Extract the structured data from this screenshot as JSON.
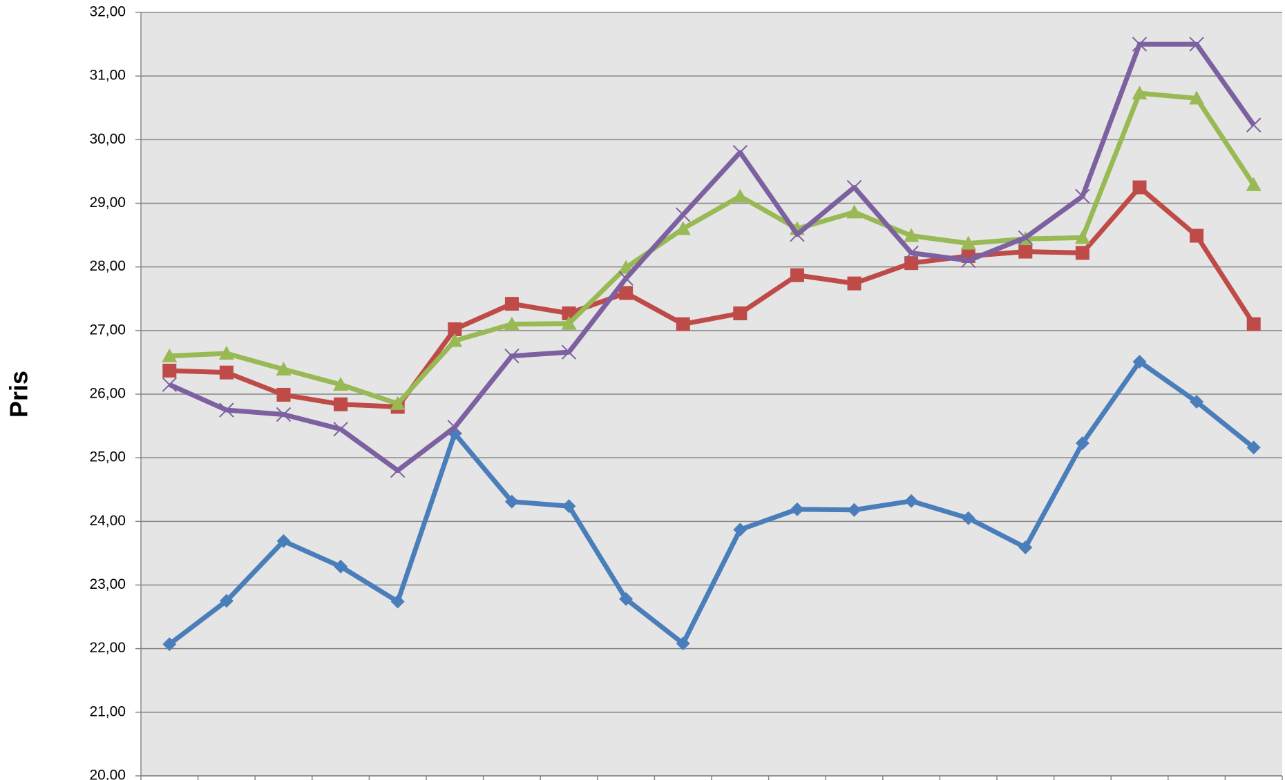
{
  "chart_data": {
    "type": "line",
    "y_label": "Pris",
    "categories": [
      null,
      null,
      null,
      null,
      null,
      null,
      null,
      null,
      null,
      null,
      null,
      null,
      null,
      null,
      null,
      null,
      null,
      null,
      null,
      null
    ],
    "ylim": [
      20,
      32
    ],
    "yticks": [
      {
        "value": 20,
        "label": "20,00"
      },
      {
        "value": 21,
        "label": "21,00"
      },
      {
        "value": 22,
        "label": "22,00"
      },
      {
        "value": 23,
        "label": "23,00"
      },
      {
        "value": 24,
        "label": "24,00"
      },
      {
        "value": 25,
        "label": "25,00"
      },
      {
        "value": 26,
        "label": "26,00"
      },
      {
        "value": 27,
        "label": "27,00"
      },
      {
        "value": 28,
        "label": "28,00"
      },
      {
        "value": 29,
        "label": "29,00"
      },
      {
        "value": 30,
        "label": "30,00"
      },
      {
        "value": 31,
        "label": "31,00"
      },
      {
        "value": 32,
        "label": "32,00"
      }
    ],
    "grid": true,
    "series": [
      {
        "color": "#4a7ebb",
        "marker": "diamond",
        "values": [
          22.07,
          22.75,
          23.69,
          23.29,
          22.74,
          25.38,
          24.31,
          24.24,
          22.78,
          22.08,
          23.87,
          24.19,
          24.18,
          24.32,
          24.05,
          23.59,
          25.23,
          26.51,
          25.88,
          25.16
        ]
      },
      {
        "color": "#be4b48",
        "marker": "square",
        "values": [
          26.37,
          26.34,
          25.99,
          25.84,
          25.8,
          27.02,
          27.42,
          27.27,
          27.59,
          27.1,
          27.27,
          27.87,
          27.74,
          28.06,
          28.17,
          28.24,
          28.22,
          29.25,
          28.49,
          27.1
        ]
      },
      {
        "color": "#98b954",
        "marker": "triangle",
        "values": [
          26.6,
          26.64,
          26.39,
          26.15,
          25.85,
          26.84,
          27.1,
          27.11,
          27.99,
          28.6,
          29.11,
          28.6,
          28.86,
          28.49,
          28.37,
          28.44,
          28.46,
          30.73,
          30.65,
          29.29
        ]
      },
      {
        "color": "#7d60a0",
        "marker": "x",
        "values": [
          26.15,
          25.75,
          25.68,
          25.45,
          24.8,
          25.48,
          26.6,
          26.66,
          27.82,
          28.82,
          29.8,
          28.51,
          29.25,
          28.22,
          28.1,
          28.46,
          29.11,
          31.5,
          31.5,
          30.23
        ]
      }
    ]
  }
}
